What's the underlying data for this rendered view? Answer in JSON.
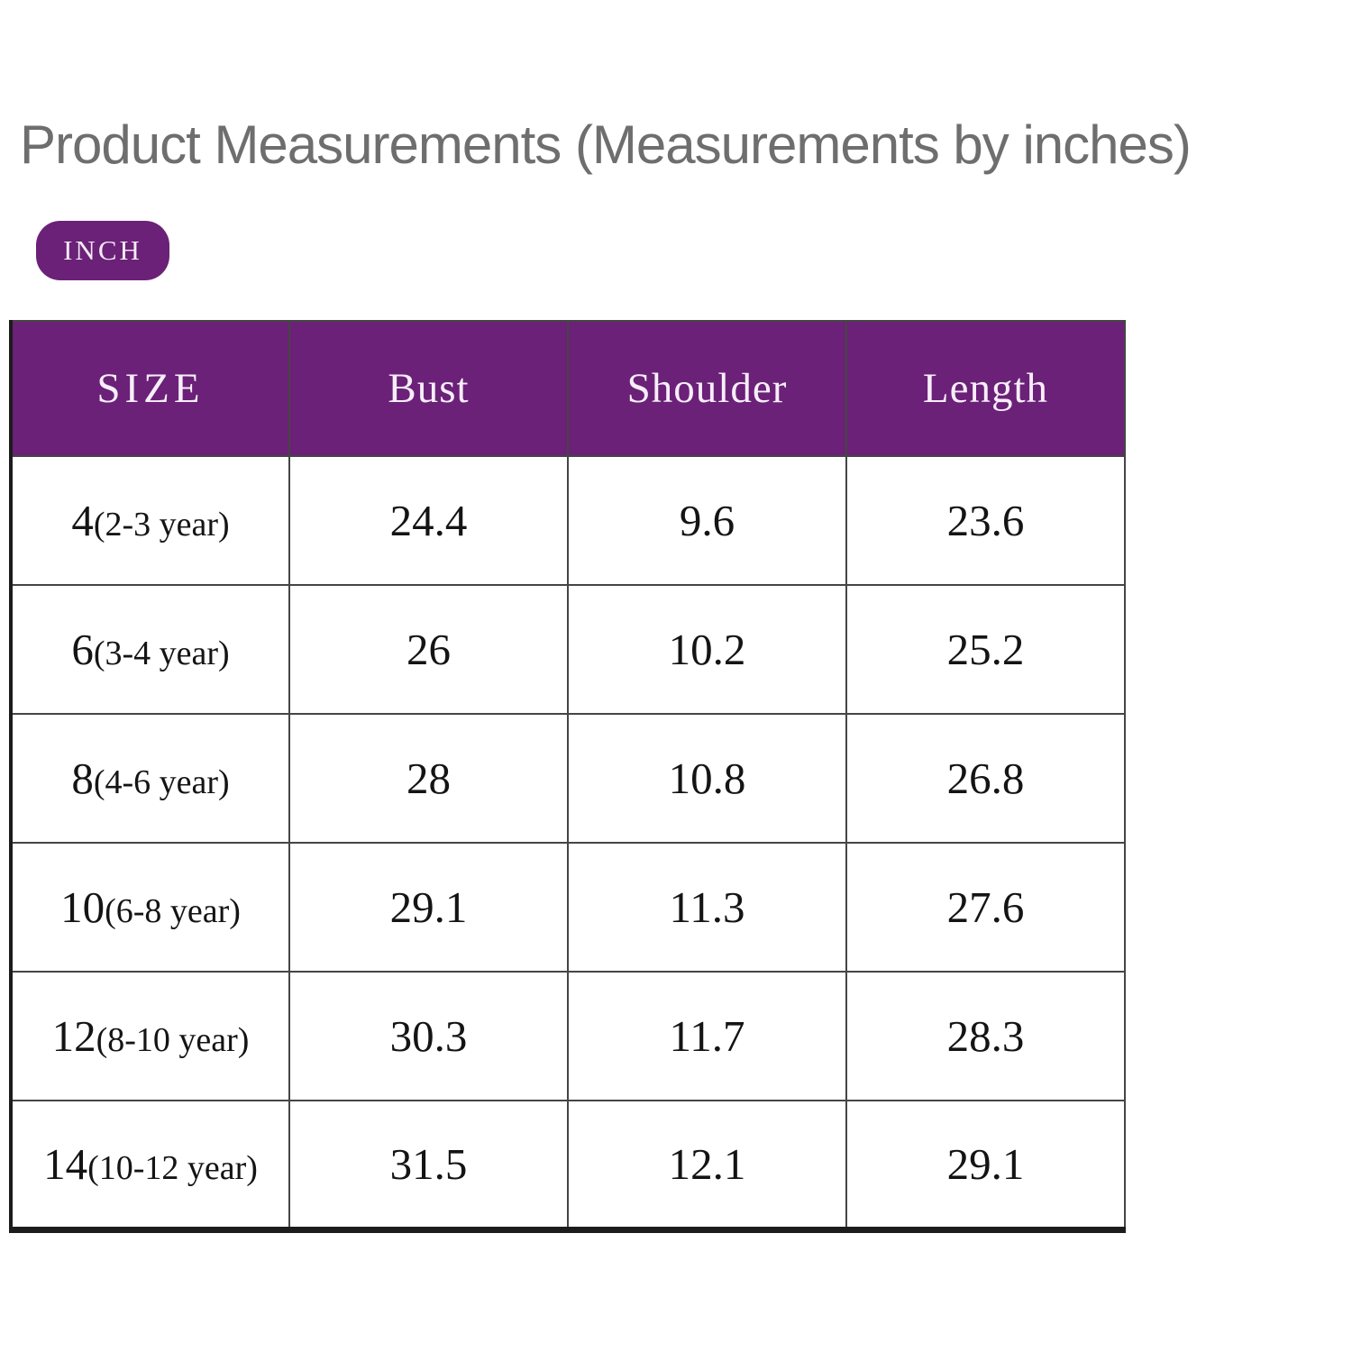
{
  "title": "Product Measurements (Measurements by inches)",
  "unit_badge": {
    "label": "INCH"
  },
  "colors": {
    "accent_purple": "#6b2177",
    "title_gray": "#6e6e6e",
    "grid_border": "#454545"
  },
  "table": {
    "headers": {
      "size": "SIZE",
      "bust": "Bust",
      "shoulder": "Shoulder",
      "length": "Length"
    },
    "rows": [
      {
        "size": "4",
        "age": "(2-3 year)",
        "bust": "24.4",
        "shoulder": "9.6",
        "length": "23.6"
      },
      {
        "size": "6",
        "age": "(3-4 year)",
        "bust": "26",
        "shoulder": "10.2",
        "length": "25.2"
      },
      {
        "size": "8",
        "age": "(4-6 year)",
        "bust": "28",
        "shoulder": "10.8",
        "length": "26.8"
      },
      {
        "size": "10",
        "age": "(6-8 year)",
        "bust": "29.1",
        "shoulder": "11.3",
        "length": "27.6"
      },
      {
        "size": "12",
        "age": "(8-10 year)",
        "bust": "30.3",
        "shoulder": "11.7",
        "length": "28.3"
      },
      {
        "size": "14",
        "age": "(10-12 year)",
        "bust": "31.5",
        "shoulder": "12.1",
        "length": "29.1"
      }
    ]
  },
  "chart_data": {
    "type": "table",
    "title": "Product Measurements (Measurements by inches)",
    "unit": "INCH",
    "columns": [
      "SIZE",
      "Bust",
      "Shoulder",
      "Length"
    ],
    "rows": [
      [
        "4(2-3 year)",
        24.4,
        9.6,
        23.6
      ],
      [
        "6(3-4 year)",
        26,
        10.2,
        25.2
      ],
      [
        "8(4-6 year)",
        28,
        10.8,
        26.8
      ],
      [
        "10(6-8 year)",
        29.1,
        11.3,
        27.6
      ],
      [
        "12(8-10 year)",
        30.3,
        11.7,
        28.3
      ],
      [
        "14(10-12 year)",
        31.5,
        12.1,
        29.1
      ]
    ]
  }
}
